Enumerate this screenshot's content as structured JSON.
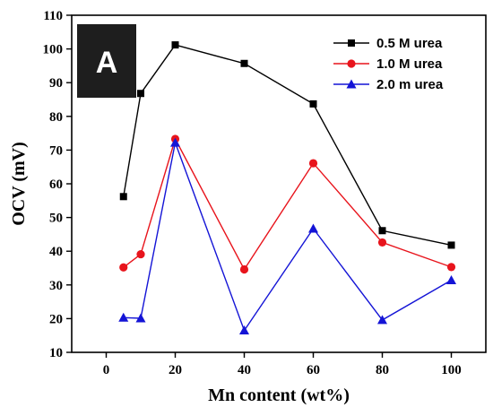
{
  "panel_label": "A",
  "colors": {
    "series_1": "#000000",
    "series_2": "#e8141c",
    "series_3": "#1414d6",
    "panel_box": "#1e1e1e"
  },
  "chart_data": {
    "type": "line",
    "title": "",
    "xlabel": "Mn content (wt%)",
    "ylabel": "OCV (mV)",
    "xlim": [
      -10,
      110
    ],
    "ylim": [
      10,
      110
    ],
    "xticks": [
      0,
      20,
      40,
      60,
      80,
      100
    ],
    "yticks": [
      10,
      20,
      30,
      40,
      50,
      60,
      70,
      80,
      90,
      100,
      110
    ],
    "grid": false,
    "legend_position": "top-right",
    "x": [
      5,
      10,
      20,
      40,
      60,
      80,
      100
    ],
    "series": [
      {
        "name": "0.5 M urea",
        "marker": "square",
        "color": "#000000",
        "values": [
          56.2,
          86.8,
          101.2,
          95.7,
          83.7,
          46.1,
          41.8
        ]
      },
      {
        "name": "1.0 M urea",
        "marker": "circle",
        "color": "#e8141c",
        "values": [
          35.2,
          39.1,
          73.3,
          34.6,
          66.1,
          42.6,
          35.3
        ]
      },
      {
        "name": "2.0 m urea",
        "marker": "triangle",
        "color": "#1414d6",
        "values": [
          20.3,
          20.1,
          72.2,
          16.5,
          46.7,
          19.6,
          31.4
        ]
      }
    ]
  }
}
